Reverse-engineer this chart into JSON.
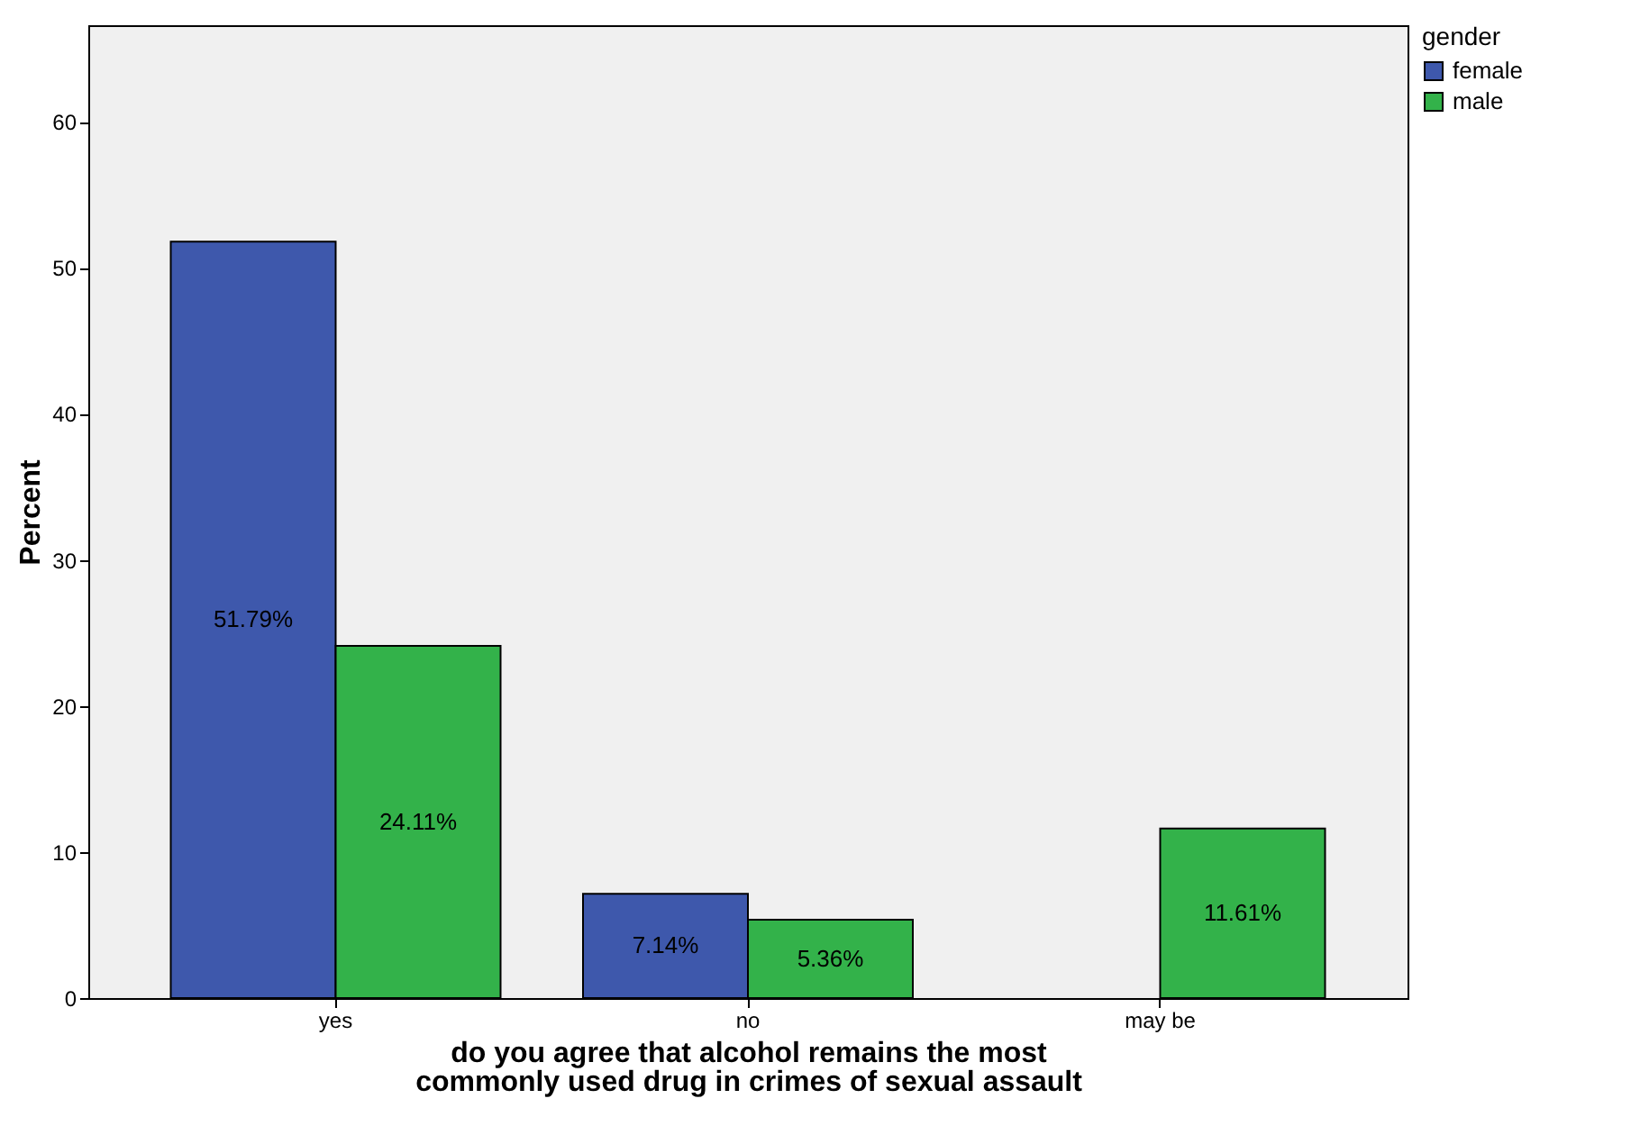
{
  "chart_data": {
    "type": "bar",
    "xlabel": "do you agree that alcohol remains the most commonly used drug in crimes of sexual assault",
    "ylabel": "Percent",
    "legend_title": "gender",
    "legend": "top right",
    "grid": false,
    "categories": [
      "yes",
      "no",
      "may be"
    ],
    "series": [
      {
        "name": "female",
        "color": "#3e58ac",
        "values": [
          51.79,
          7.14,
          null
        ],
        "value_labels": [
          "51.79%",
          "7.14%",
          null
        ]
      },
      {
        "name": "male",
        "color": "#33b24a",
        "values": [
          24.11,
          5.36,
          11.61
        ],
        "value_labels": [
          "24.11%",
          "5.36%",
          "11.61%"
        ]
      }
    ],
    "ylim": [
      0,
      66.6
    ],
    "yticks": [
      0,
      10,
      20,
      30,
      40,
      50,
      60
    ]
  }
}
